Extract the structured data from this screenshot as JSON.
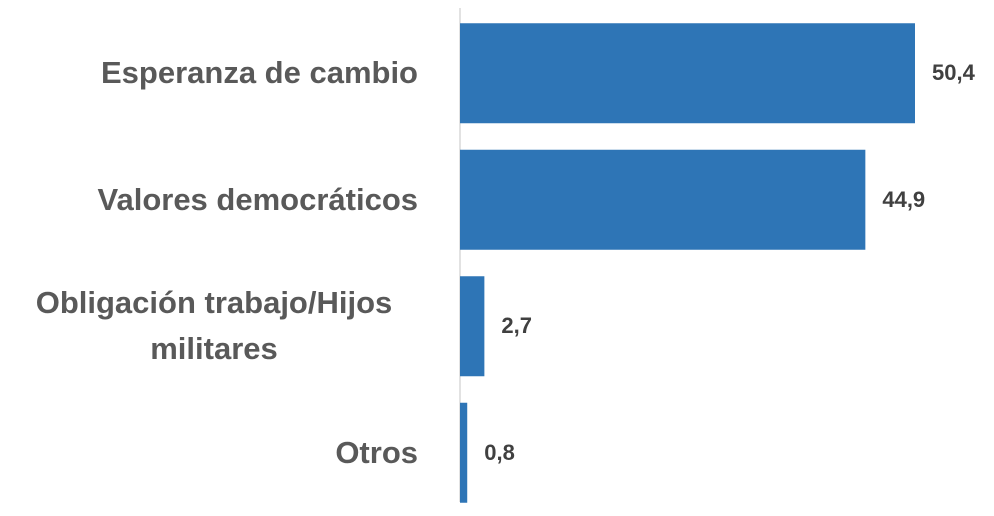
{
  "chart_data": {
    "type": "bar",
    "orientation": "horizontal",
    "categories": [
      "Esperanza de cambio",
      "Valores democráticos",
      "Obligación trabajo/Hijos militares",
      "Otros"
    ],
    "values": [
      50.4,
      44.9,
      2.7,
      0.8
    ],
    "value_labels": [
      "50,4",
      "44,9",
      "2,7",
      "0,8"
    ],
    "color": "#2e75b6"
  }
}
